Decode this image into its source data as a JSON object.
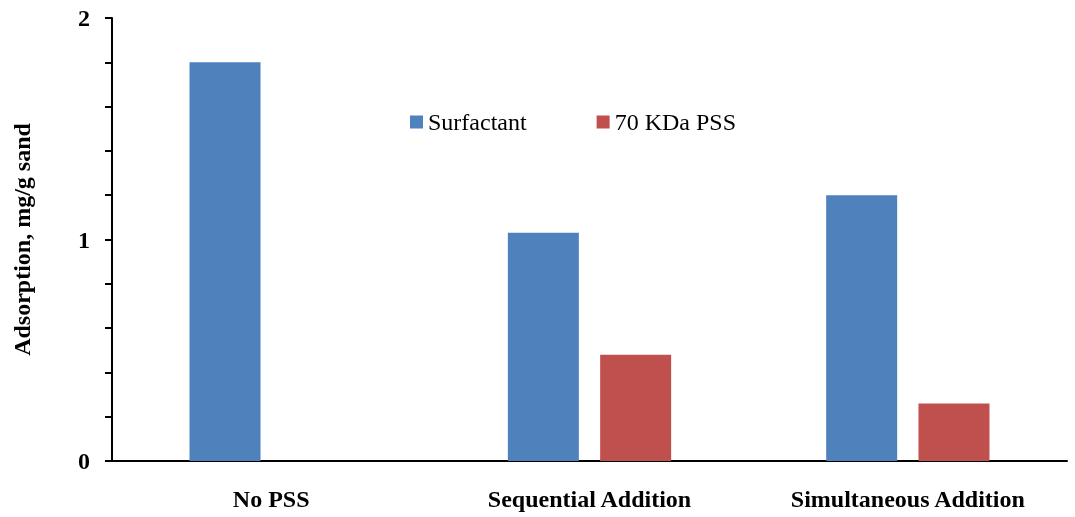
{
  "chart_data": {
    "type": "bar",
    "ylabel": "Adsorption, mg/g sand",
    "categories": [
      "No PSS",
      "Sequential Addition",
      "Simultaneous Addition"
    ],
    "series": [
      {
        "name": "Surfactant",
        "color": "#4f81bd",
        "values": [
          1.8,
          1.03,
          1.2
        ]
      },
      {
        "name": "70 KDa PSS",
        "color": "#c0504d",
        "values": [
          null,
          0.48,
          0.26
        ]
      }
    ],
    "ylim": [
      0,
      2
    ],
    "yticks": [
      0,
      {
        "value": 0.2,
        "label": null
      },
      {
        "value": 0.4,
        "label": null
      },
      {
        "value": 0.6,
        "label": null
      },
      {
        "value": 0.8,
        "label": null
      },
      1,
      {
        "value": 1.2,
        "label": null
      },
      {
        "value": 1.4,
        "label": null
      },
      {
        "value": 1.6,
        "label": null
      },
      {
        "value": 1.8,
        "label": null
      },
      2
    ],
    "grid": false,
    "legend": "top"
  }
}
